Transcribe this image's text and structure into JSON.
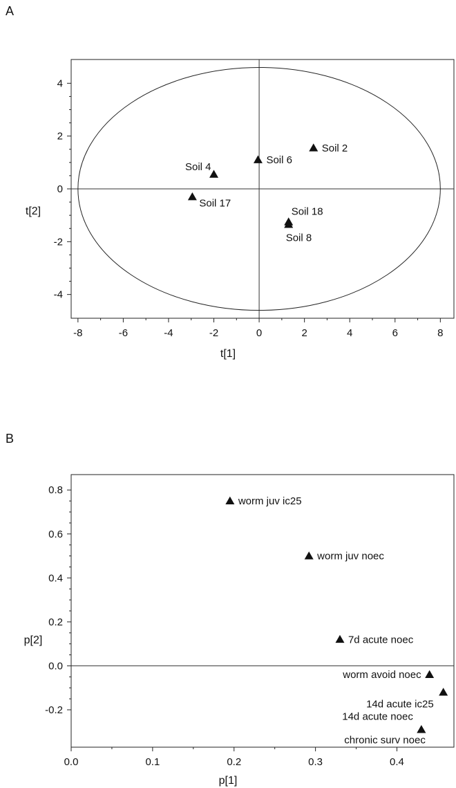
{
  "chart_data": [
    {
      "panel_label": "A",
      "type": "scatter",
      "xlabel": "t[1]",
      "ylabel": "t[2]",
      "xlim": [
        -8.3,
        8.6
      ],
      "ylim": [
        -4.9,
        4.9
      ],
      "xticks": [
        -8,
        -6,
        -4,
        -2,
        0,
        2,
        4,
        6,
        8
      ],
      "yticks": [
        -4,
        -2,
        0,
        2,
        4
      ],
      "ellipse": {
        "cx": 0,
        "cy": 0,
        "rx": 8,
        "ry": 4.6
      },
      "grid": false,
      "zero_lines": true,
      "points": [
        {
          "label": "Soil 2",
          "x": 2.4,
          "y": 1.55,
          "label_pos": "right"
        },
        {
          "label": "Soil 6",
          "x": -0.05,
          "y": 1.1,
          "label_pos": "right"
        },
        {
          "label": "Soil 4",
          "x": -2.0,
          "y": 0.55,
          "label_pos": "upper-left"
        },
        {
          "label": "Soil 17",
          "x": -2.95,
          "y": -0.3,
          "label_pos": "lower-right"
        },
        {
          "label": "Soil 18",
          "x": 1.3,
          "y": -1.25,
          "label_pos": "above-right"
        },
        {
          "label": "Soil 8",
          "x": 1.3,
          "y": -1.35,
          "label_pos": "below"
        }
      ]
    },
    {
      "panel_label": "B",
      "type": "scatter",
      "xlabel": "p[1]",
      "ylabel": "p[2]",
      "xlim": [
        0.0,
        0.47
      ],
      "ylim": [
        -0.37,
        0.87
      ],
      "xticks": [
        0.0,
        0.1,
        0.2,
        0.3,
        0.4
      ],
      "yticks": [
        -0.2,
        0.0,
        0.2,
        0.4,
        0.6,
        0.8
      ],
      "tick_format": "0.0",
      "grid": false,
      "zero_lines": true,
      "points": [
        {
          "label": "worm juv ic25",
          "x": 0.195,
          "y": 0.75,
          "label_pos": "right"
        },
        {
          "label": "worm juv noec",
          "x": 0.292,
          "y": 0.5,
          "label_pos": "right"
        },
        {
          "label": "7d acute noec",
          "x": 0.33,
          "y": 0.12,
          "label_pos": "right"
        },
        {
          "label": "worm avoid noec",
          "x": 0.44,
          "y": -0.04,
          "label_pos": "left"
        },
        {
          "label": "14d acute ic25",
          "x": 0.457,
          "y": -0.12,
          "label_pos": "left-below"
        },
        {
          "label": "14d acute noec",
          "x": 0.43,
          "y": -0.29,
          "label_pos": "left-above"
        },
        {
          "label": "chronic surv noec",
          "x": 0.43,
          "y": -0.29,
          "label_pos": "left-below"
        }
      ]
    }
  ]
}
